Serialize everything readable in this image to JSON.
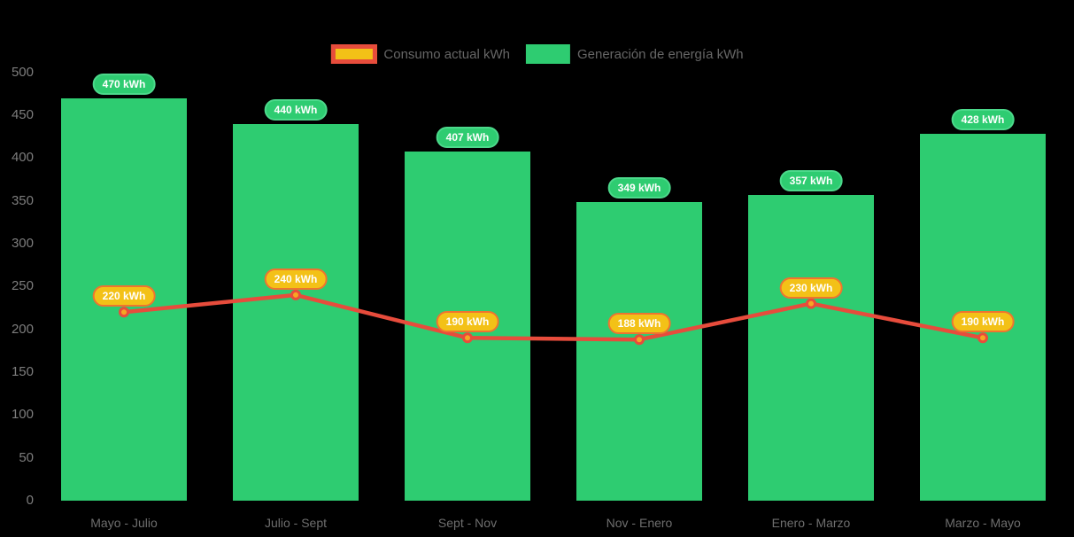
{
  "chart_data": {
    "type": "bar",
    "title": "",
    "categories": [
      "Mayo - Julio",
      "Julio - Sept",
      "Sept - Nov",
      "Nov - Enero",
      "Enero - Marzo",
      "Marzo - Mayo"
    ],
    "series": [
      {
        "name": "Consumo actual kWh",
        "type": "line",
        "values": [
          220,
          240,
          190,
          188,
          230,
          190
        ],
        "point_labels": [
          "220 kWh",
          "240 kWh",
          "190 kWh",
          "188 kWh",
          "230 kWh",
          "190 kWh"
        ],
        "color": "#e74c3c",
        "marker_fill": "#f5a623",
        "marker_stroke": "#e74c3c",
        "label_bg": "#f3c117",
        "label_border": "#ee7430",
        "label_text_color": "#ffffff"
      },
      {
        "name": "Generación de energía kWh",
        "type": "bar",
        "values": [
          470,
          440,
          407,
          349,
          357,
          428
        ],
        "point_labels": [
          "470 kWh",
          "440 kWh",
          "407 kWh",
          "349 kWh",
          "357 kWh",
          "428 kWh"
        ],
        "color": "#2ecc71",
        "label_bg": "#2ecc71",
        "label_border": "#4cd98b",
        "label_text_color": "#ffffff"
      }
    ],
    "xlabel": "",
    "ylabel": "",
    "ylim": [
      0,
      500
    ],
    "ytick_step": 50,
    "ytick_labels": [
      "0",
      "50",
      "100",
      "150",
      "200",
      "250",
      "300",
      "350",
      "400",
      "450",
      "500"
    ],
    "grid": false,
    "legend_position": "top",
    "background": "#000000",
    "yaxis_text_color": "#7d7d7d",
    "xaxis_text_color": "#6e6e6e",
    "legend_text_color": "#666666"
  }
}
